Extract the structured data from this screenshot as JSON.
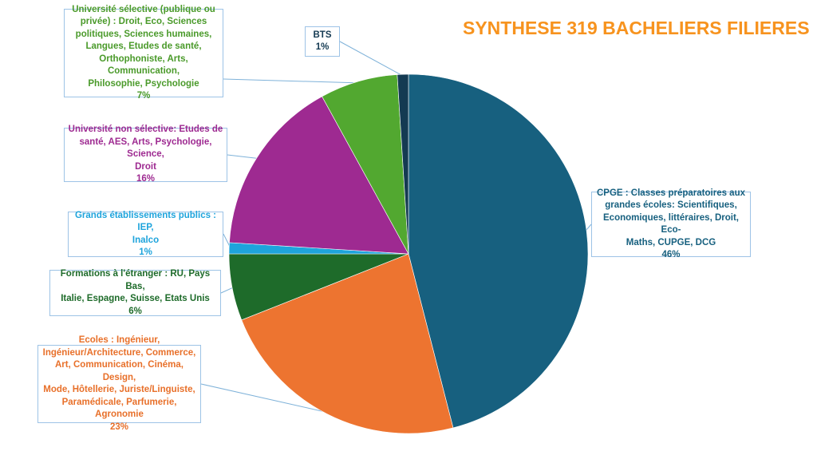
{
  "title": "SYNTHESE 319 BACHELIERS FILIERES",
  "colors": {
    "title": "#f7931e",
    "leader": "#7fb2d9"
  },
  "chart_data": {
    "type": "pie",
    "title": "SYNTHESE 319 BACHELIERS FILIERES",
    "start": "12 o'clock, clockwise",
    "slices": [
      {
        "id": "cpge",
        "name": "CPGE : Classes préparatoires aux grandes écoles: Scientifiques, Economiques, littéraires, Droit, Eco-Maths, CUPGE, DCG",
        "value": 46,
        "pct": "46%",
        "color": "#17607f",
        "text_color": "#17607f"
      },
      {
        "id": "ecoles",
        "name": "Ecoles : Ingénieur, Ingénieur/Architecture, Commerce, Art, Communication, Cinéma, Design, Mode, Hôtellerie, Juriste/Linguiste, Paramédicale, Parfumerie, Agronomie",
        "value": 23,
        "pct": "23%",
        "color": "#ed7430",
        "text_color": "#e8702a"
      },
      {
        "id": "etranger",
        "name": "Formations à l'étranger : RU, Pays Bas, Italie, Espagne, Suisse, Etats Unis",
        "value": 6,
        "pct": "6%",
        "color": "#1e6b2a",
        "text_color": "#1e6b2a"
      },
      {
        "id": "grands",
        "name": "Grands établissements publics : IEP, Inalco",
        "value": 1,
        "pct": "1%",
        "color": "#1ea4dc",
        "text_color": "#1ea4dc"
      },
      {
        "id": "nonselective",
        "name": "Université non sélective: Etudes de santé, AES, Arts, Psychologie, Science, Droit",
        "value": 16,
        "pct": "16%",
        "color": "#9e2a91",
        "text_color": "#9e2a91"
      },
      {
        "id": "selective",
        "name": "Université sélective  (publique ou privée) : Droit, Eco, Sciences politiques, Sciences humaines, Langues, Etudes de santé, Orthophoniste, Arts, Communication, Philosophie, Psychologie",
        "value": 7,
        "pct": "7%",
        "color": "#52a830",
        "text_color": "#4a9a2a"
      },
      {
        "id": "bts",
        "name": "BTS",
        "value": 1,
        "pct": "1%",
        "color": "#143a52",
        "text_color": "#143a52"
      }
    ]
  },
  "labels": {
    "cpge": [
      "CPGE : Classes préparatoires aux",
      "grandes écoles: Scientifiques,",
      "Economiques, littéraires, Droit, Eco-",
      "Maths, CUPGE, DCG",
      "46%"
    ],
    "ecoles": [
      "Ecoles : Ingénieur,",
      "Ingénieur/Architecture, Commerce,",
      "Art, Communication, Cinéma, Design,",
      "Mode, Hôtellerie, Juriste/Linguiste,",
      "Paramédicale, Parfumerie, Agronomie",
      "23%"
    ],
    "etranger": [
      "Formations à l'étranger : RU, Pays Bas,",
      "Italie, Espagne, Suisse, Etats Unis",
      "6%"
    ],
    "grands": [
      "Grands établissements publics : IEP,",
      "Inalco",
      "1%"
    ],
    "nonselective": [
      "Université non sélective: Etudes de",
      "santé, AES, Arts, Psychologie, Science,",
      "Droit",
      "16%"
    ],
    "selective": [
      "Université sélective  (publique ou",
      "privée) : Droit, Eco, Sciences",
      "politiques, Sciences humaines,",
      "Langues, Etudes de santé,",
      "Orthophoniste, Arts, Communication,",
      "Philosophie, Psychologie",
      "7%"
    ],
    "bts": [
      "BTS",
      "1%"
    ]
  }
}
